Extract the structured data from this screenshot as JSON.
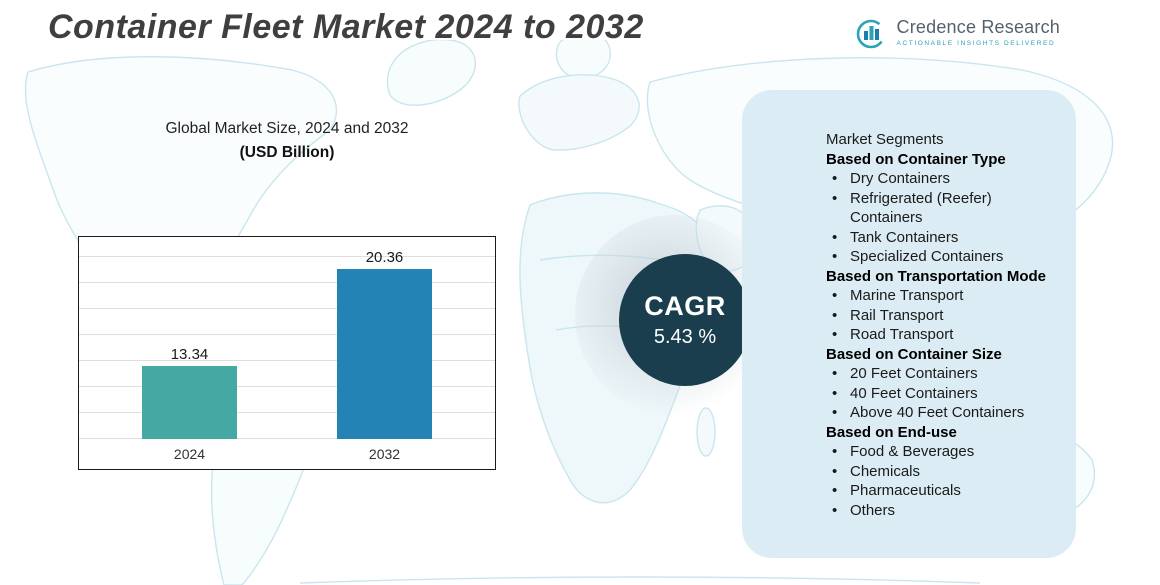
{
  "title": "Container Fleet Market 2024 to 2032",
  "logo": {
    "name": "Credence Research",
    "tagline": "Actionable Insights Delivered"
  },
  "chart": {
    "heading_line1": "Global Market Size, 2024 and 2032",
    "heading_line2": "(USD Billion)"
  },
  "chart_data": {
    "type": "bar",
    "title": "Global Market Size, 2024 and 2032 (USD Billion)",
    "categories": [
      "2024",
      "2032"
    ],
    "values": [
      13.34,
      20.36
    ],
    "unit": "USD Billion",
    "colors": [
      "#45a8a3",
      "#2383b4"
    ],
    "ylim": [
      8,
      22
    ],
    "grid": true,
    "legend": false
  },
  "cagr": {
    "label": "CAGR",
    "value": "5.43 %"
  },
  "colors": {
    "cagr_circle": "#1a3e4d",
    "panel_background": "#dbecf4",
    "map_stroke": "#c9e6ee",
    "bar_2024": "#45a8a3",
    "bar_2032": "#2383b4"
  },
  "segments": {
    "intro": "Market Segments",
    "groups": [
      {
        "heading": "Based on Container Type",
        "items": [
          "Dry Containers",
          "Refrigerated (Reefer) Containers",
          "Tank Containers",
          "Specialized Containers"
        ]
      },
      {
        "heading": "Based on Transportation Mode",
        "items": [
          "Marine Transport",
          "Rail Transport",
          "Road Transport"
        ]
      },
      {
        "heading": "Based on Container Size",
        "items": [
          "20 Feet Containers",
          "40 Feet Containers",
          "Above 40 Feet Containers"
        ]
      },
      {
        "heading": "Based on End-use",
        "items": [
          "Food & Beverages",
          "Chemicals",
          "Pharmaceuticals",
          "Others"
        ]
      }
    ]
  }
}
